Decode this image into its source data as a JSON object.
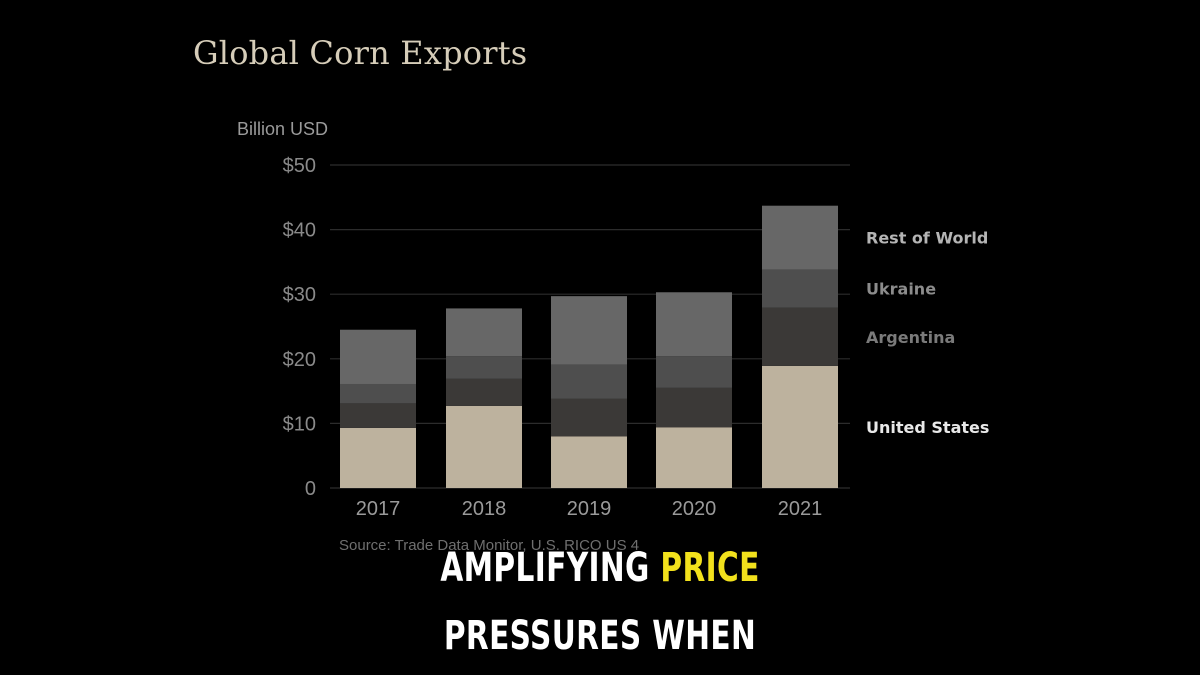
{
  "chart_data": {
    "type": "bar",
    "stacked": true,
    "title": "Global Corn Exports",
    "ylabel": "Billion USD",
    "ylim": [
      0,
      50
    ],
    "yticks": [
      "0",
      "$10",
      "$20",
      "$30",
      "$40",
      "$50"
    ],
    "ytick_values": [
      0,
      10,
      20,
      30,
      40,
      50
    ],
    "categories": [
      "2017",
      "2018",
      "2019",
      "2020",
      "2021"
    ],
    "grid": true,
    "legend_position": "right",
    "series": [
      {
        "name": "United States",
        "color": "#bdb29e",
        "label_color": "#e8e8e8",
        "values": [
          9.3,
          12.7,
          8.0,
          9.4,
          18.9
        ]
      },
      {
        "name": "Argentina",
        "color": "#3b3937",
        "label_color": "#7a7a7a",
        "values": [
          3.8,
          4.2,
          5.8,
          6.1,
          9.0
        ]
      },
      {
        "name": "Ukraine",
        "color": "#4e4e4e",
        "label_color": "#8c8c8c",
        "values": [
          3.0,
          3.5,
          5.3,
          4.9,
          5.9
        ]
      },
      {
        "name": "Rest of World",
        "color": "#676767",
        "label_color": "#b5b5b5",
        "values": [
          8.4,
          7.4,
          10.6,
          9.9,
          9.9
        ]
      }
    ],
    "source": "Source: Trade Data Monitor, U.S. RICO US 4"
  },
  "caption": {
    "line1_a": "AMPLIFYING",
    "line1_b": "PRICE",
    "line2": "PRESSURES WHEN"
  }
}
